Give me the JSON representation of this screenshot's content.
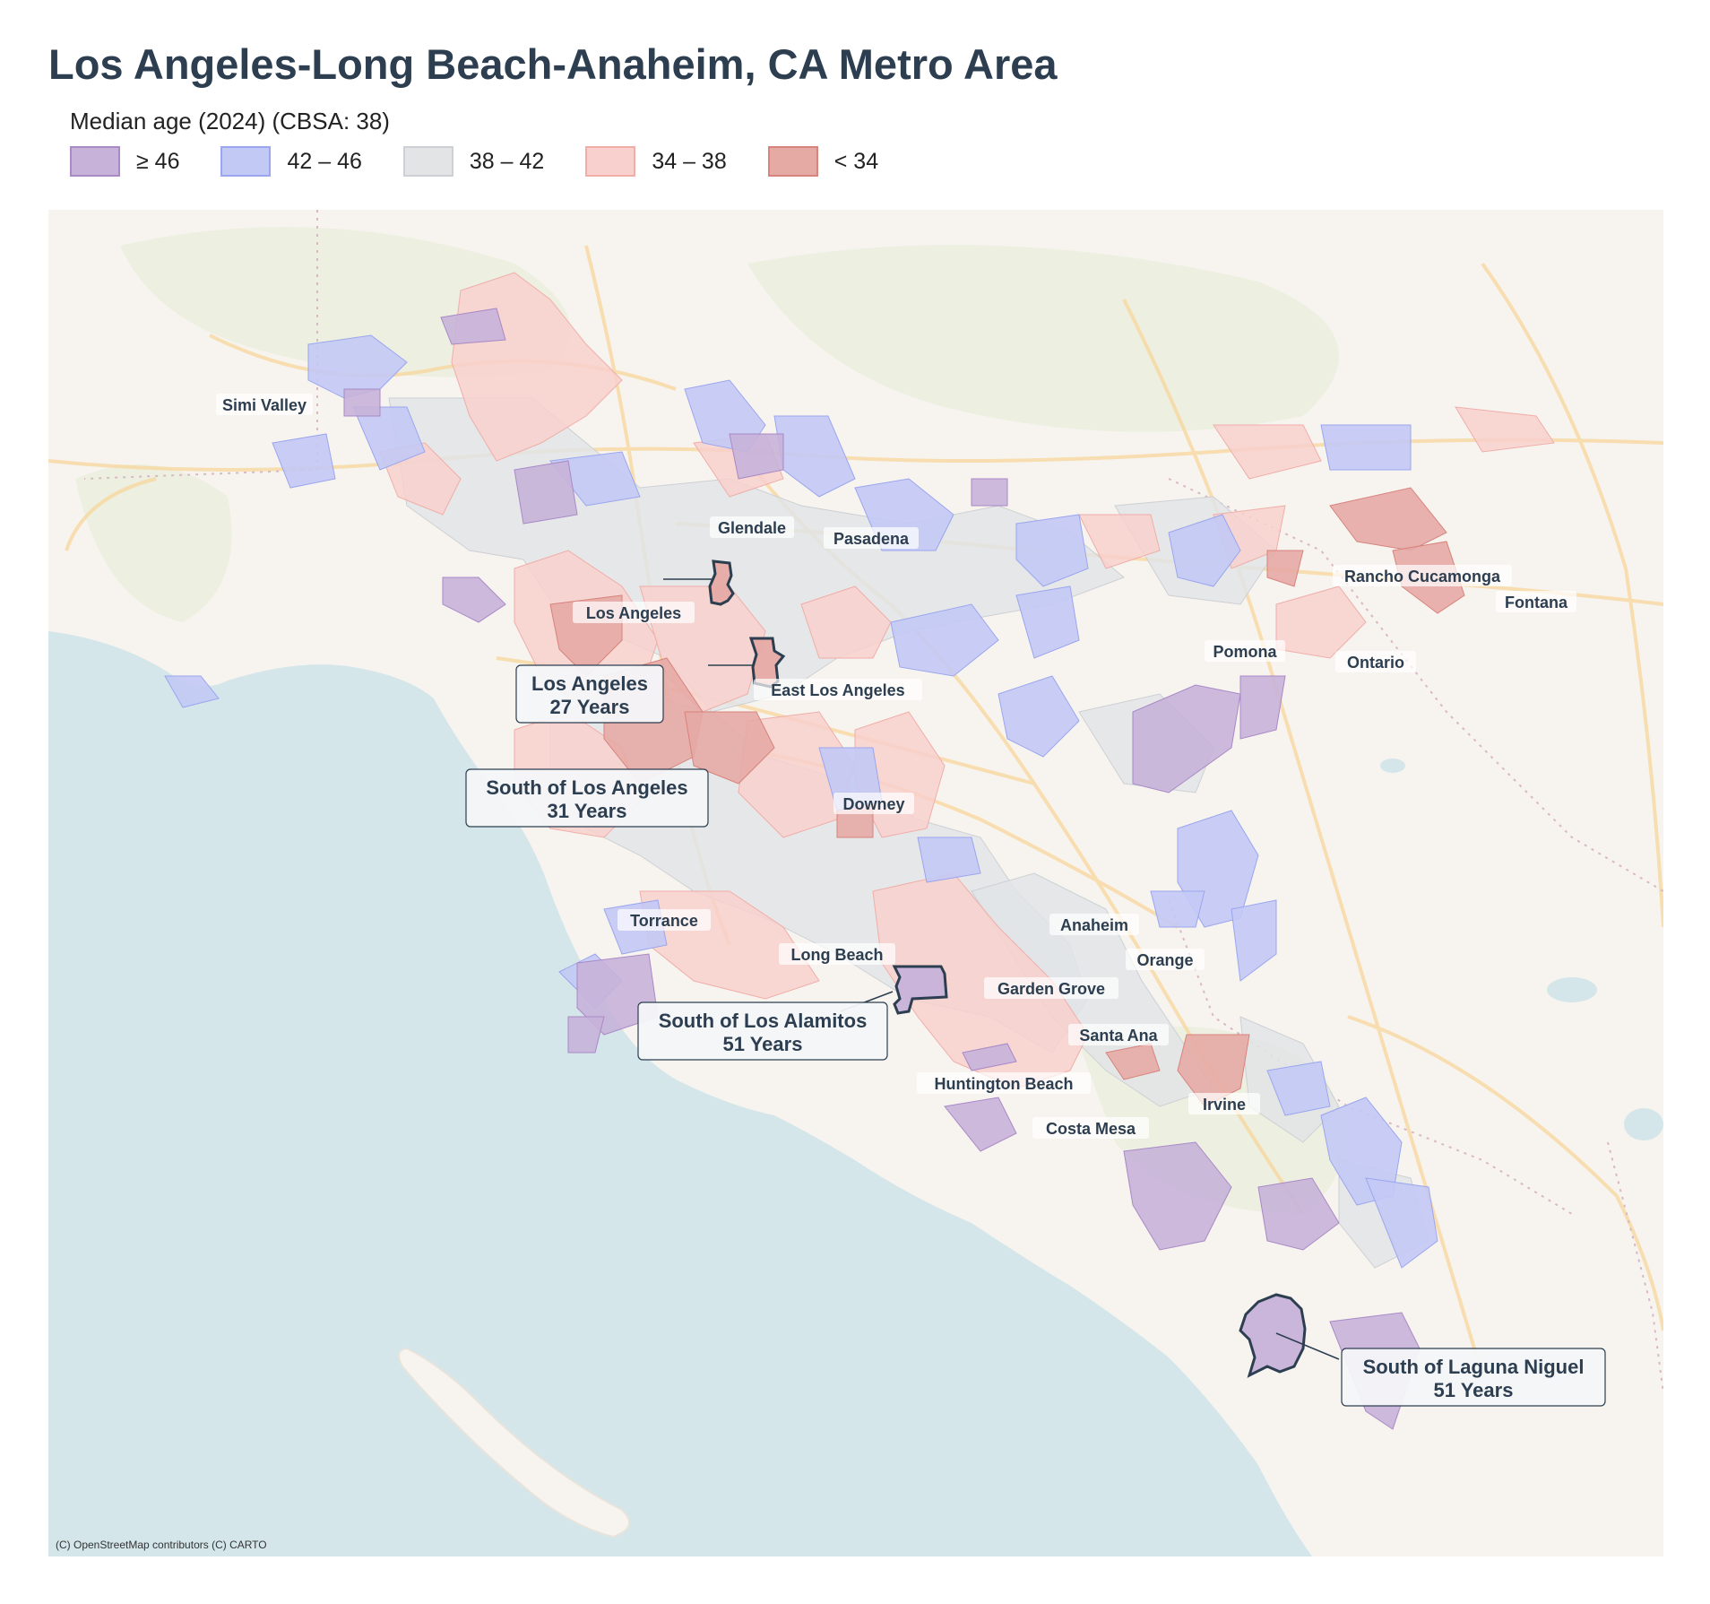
{
  "title": "Los Angeles-Long Beach-Anaheim, CA Metro Area",
  "legend": {
    "heading": "Median age (2024)  (CBSA: 38)",
    "items": [
      {
        "label": "≥ 46",
        "fill": "#c7b2d9",
        "stroke": "#a989c6"
      },
      {
        "label": "42 – 46",
        "fill": "#c3c9f5",
        "stroke": "#9aa6ee"
      },
      {
        "label": "38 – 42",
        "fill": "#e2e4e6",
        "stroke": "#cdd0d4"
      },
      {
        "label": "34 – 38",
        "fill": "#f8d0cd",
        "stroke": "#f0aea9"
      },
      {
        "label": "< 34",
        "fill": "#e6aaa5",
        "stroke": "#d8837c"
      }
    ]
  },
  "cities": {
    "simi_valley": "Simi Valley",
    "glendale": "Glendale",
    "pasadena": "Pasadena",
    "los_angeles": "Los Angeles",
    "east_los_angeles": "East Los Angeles",
    "rancho_cucamonga": "Rancho Cucamonga",
    "fontana": "Fontana",
    "pomona": "Pomona",
    "ontario": "Ontario",
    "downey": "Downey",
    "torrance": "Torrance",
    "long_beach": "Long Beach",
    "anaheim": "Anaheim",
    "orange": "Orange",
    "garden_grove": "Garden Grove",
    "santa_ana": "Santa Ana",
    "huntington_beach": "Huntington Beach",
    "irvine": "Irvine",
    "costa_mesa": "Costa Mesa"
  },
  "callouts": {
    "la": {
      "name": "Los Angeles",
      "value": "27 Years"
    },
    "south_la": {
      "name": "South of Los Angeles",
      "value": "31 Years"
    },
    "los_alamitos": {
      "name": "South of Los Alamitos",
      "value": "51 Years"
    },
    "laguna_niguel": {
      "name": "South of Laguna Niguel",
      "value": "51 Years"
    }
  },
  "attribution": "(C) OpenStreetMap contributors (C) CARTO",
  "colors": {
    "land": "#f7f4ef",
    "water": "#d4e6ea",
    "roads": "#f7d9a4",
    "outline": "#2c3e50"
  }
}
